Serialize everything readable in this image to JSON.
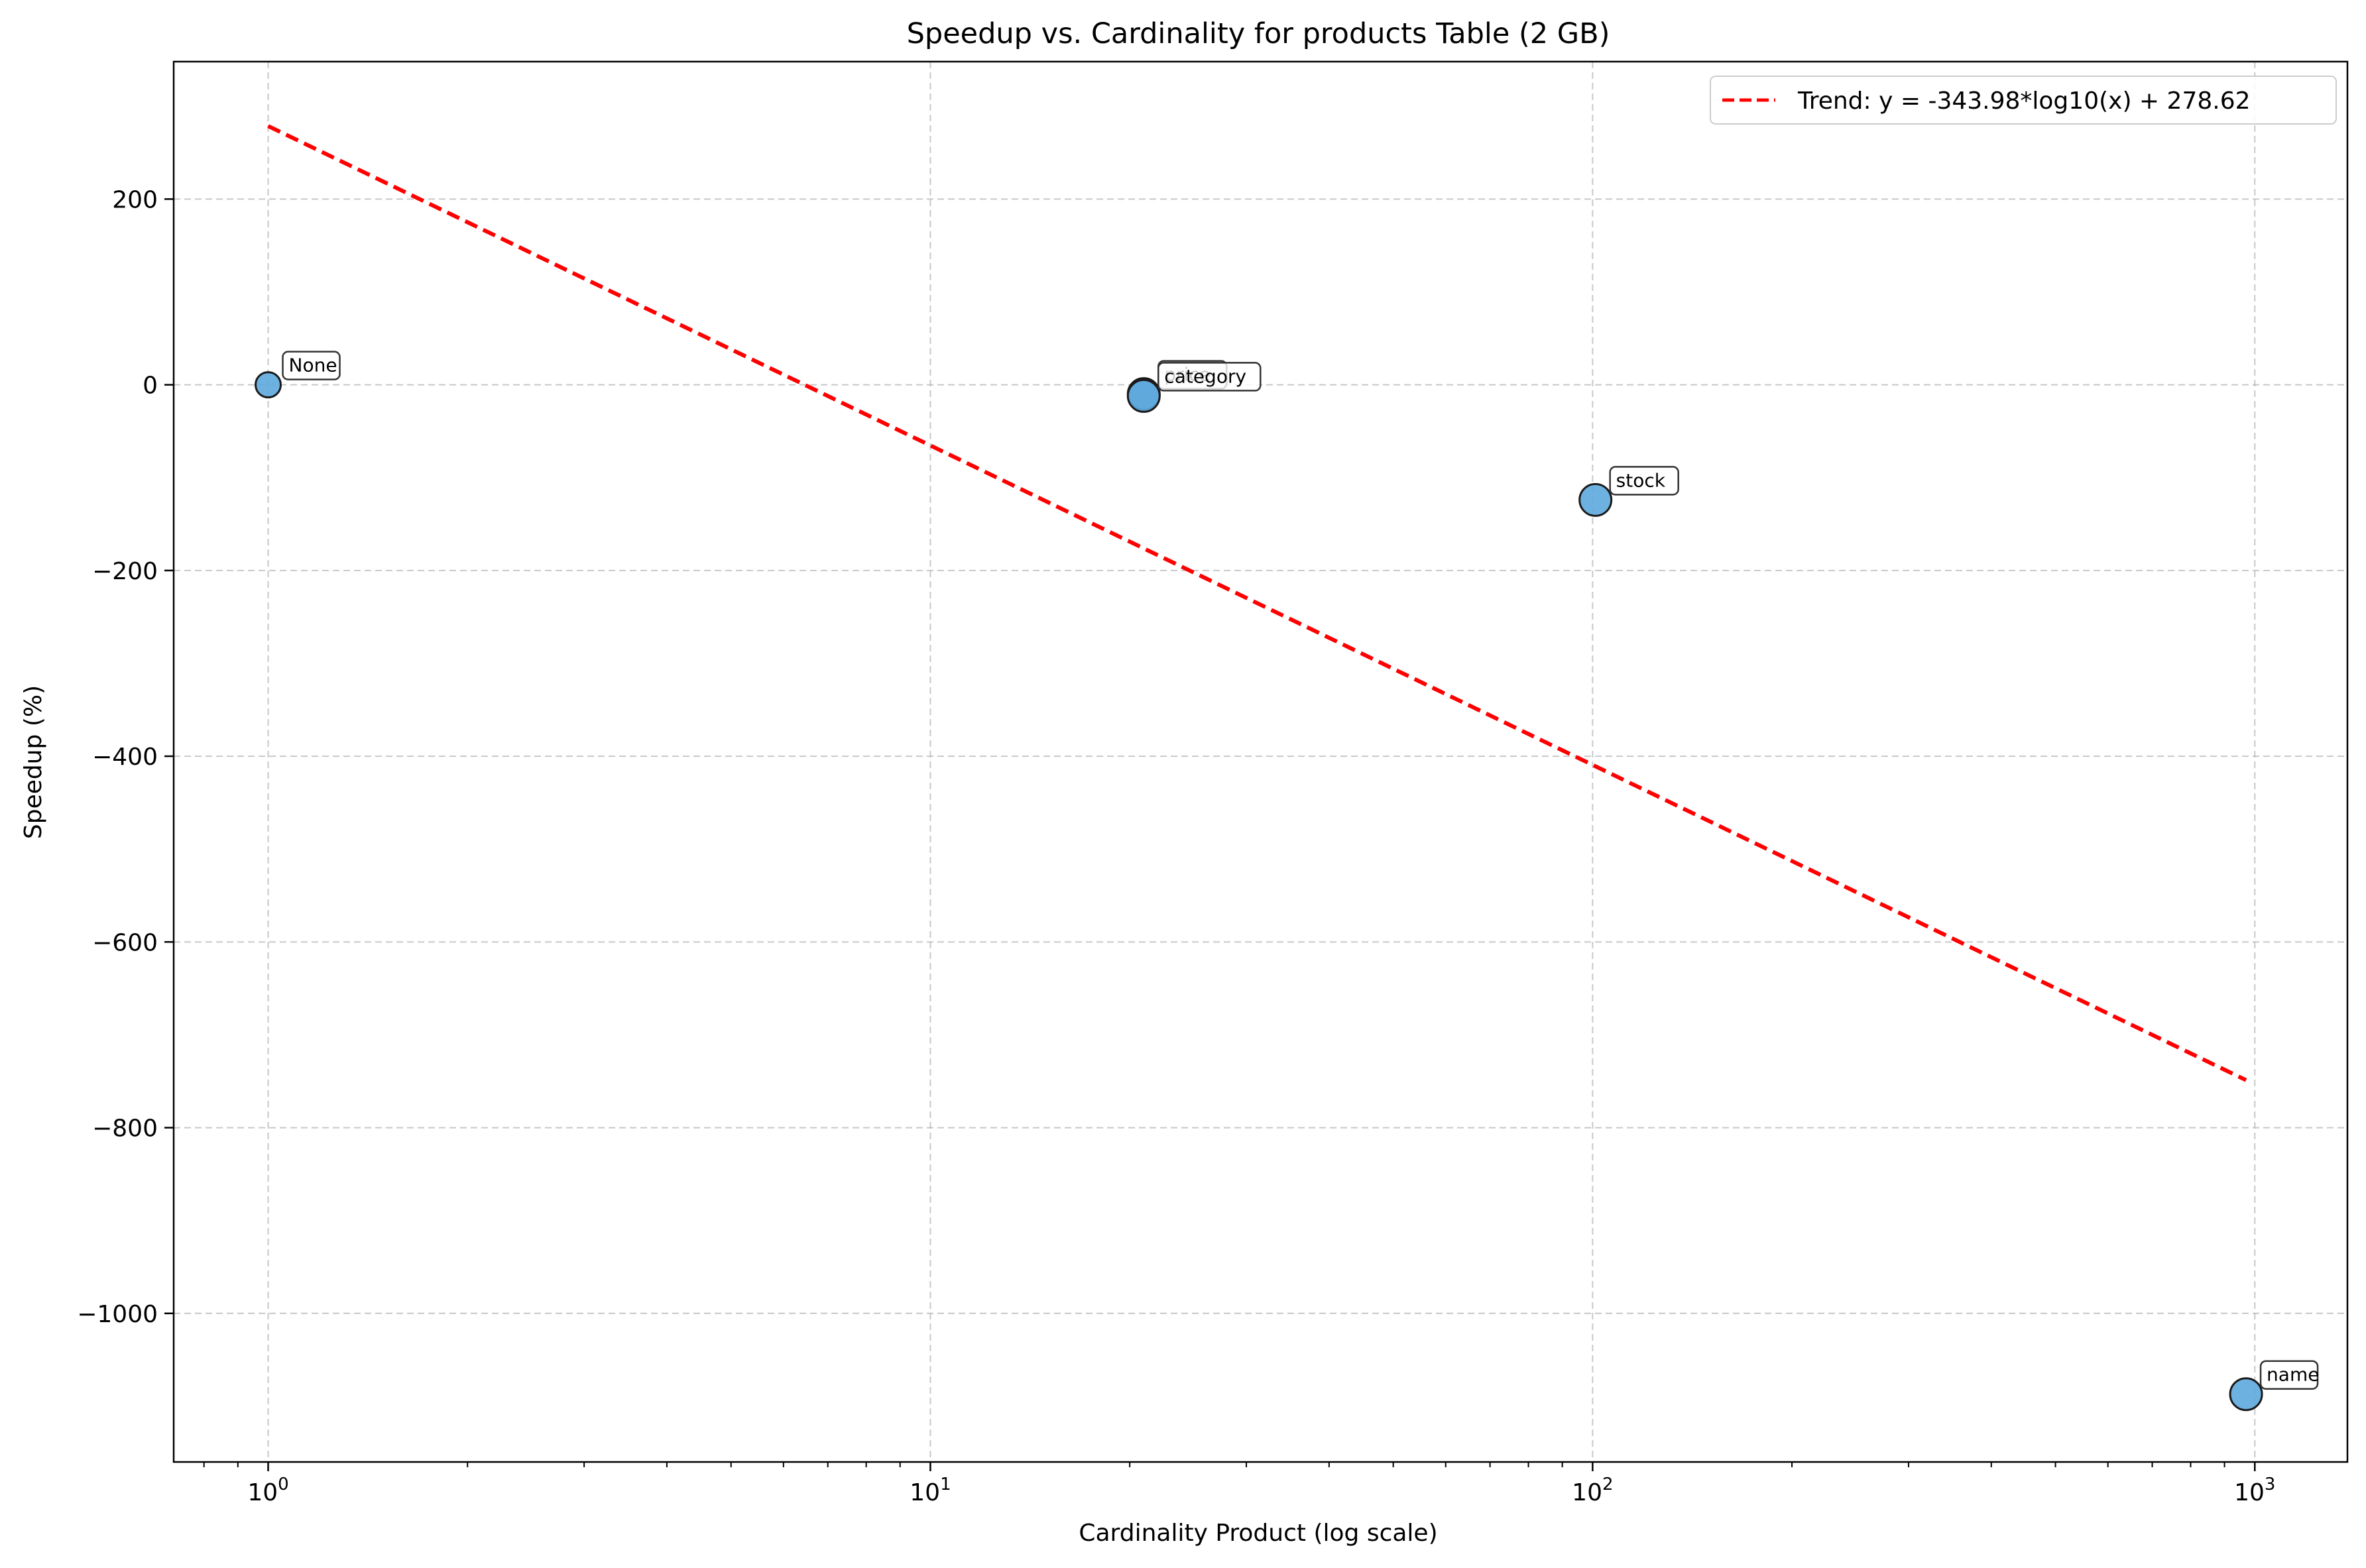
{
  "chart_data": {
    "type": "scatter",
    "title": "Speedup vs. Cardinality for products Table (2 GB)",
    "xlabel": "Cardinality Product (log scale)",
    "ylabel": "Speedup (%)",
    "x_scale": "log",
    "xlim": [
      0.72,
      1380
    ],
    "ylim": [
      -1160,
      348
    ],
    "x_ticks": [
      {
        "value": 1,
        "label_base": "10",
        "label_exp": "0"
      },
      {
        "value": 10,
        "label_base": "10",
        "label_exp": "1"
      },
      {
        "value": 100,
        "label_base": "10",
        "label_exp": "2"
      },
      {
        "value": 1000,
        "label_base": "10",
        "label_exp": "3"
      }
    ],
    "y_ticks": [
      {
        "value": 200,
        "label": "200"
      },
      {
        "value": 0,
        "label": "0"
      },
      {
        "value": -200,
        "label": "−200"
      },
      {
        "value": -400,
        "label": "−400"
      },
      {
        "value": -600,
        "label": "−600"
      },
      {
        "value": -800,
        "label": "−800"
      },
      {
        "value": -1000,
        "label": "−1000"
      }
    ],
    "grid": true,
    "legend_position": "top-right",
    "points": [
      {
        "x": 1,
        "y": 0,
        "label": "None",
        "size": "small"
      },
      {
        "x": 21,
        "y": -10,
        "label": "price",
        "size": "medium"
      },
      {
        "x": 21,
        "y": -12,
        "label": "category",
        "size": "medium"
      },
      {
        "x": 101,
        "y": -124,
        "label": "stock",
        "size": "medium"
      },
      {
        "x": 970,
        "y": -1087,
        "label": "name",
        "size": "medium"
      }
    ],
    "trend": {
      "label": "Trend: y = -343.98*log10(x) + 278.62",
      "slope": -343.98,
      "intercept": 278.62,
      "x_range": [
        1,
        970
      ],
      "color": "#ff0000"
    },
    "point_color": "#5da9dd",
    "point_edge_color": "#1a1a1a"
  }
}
